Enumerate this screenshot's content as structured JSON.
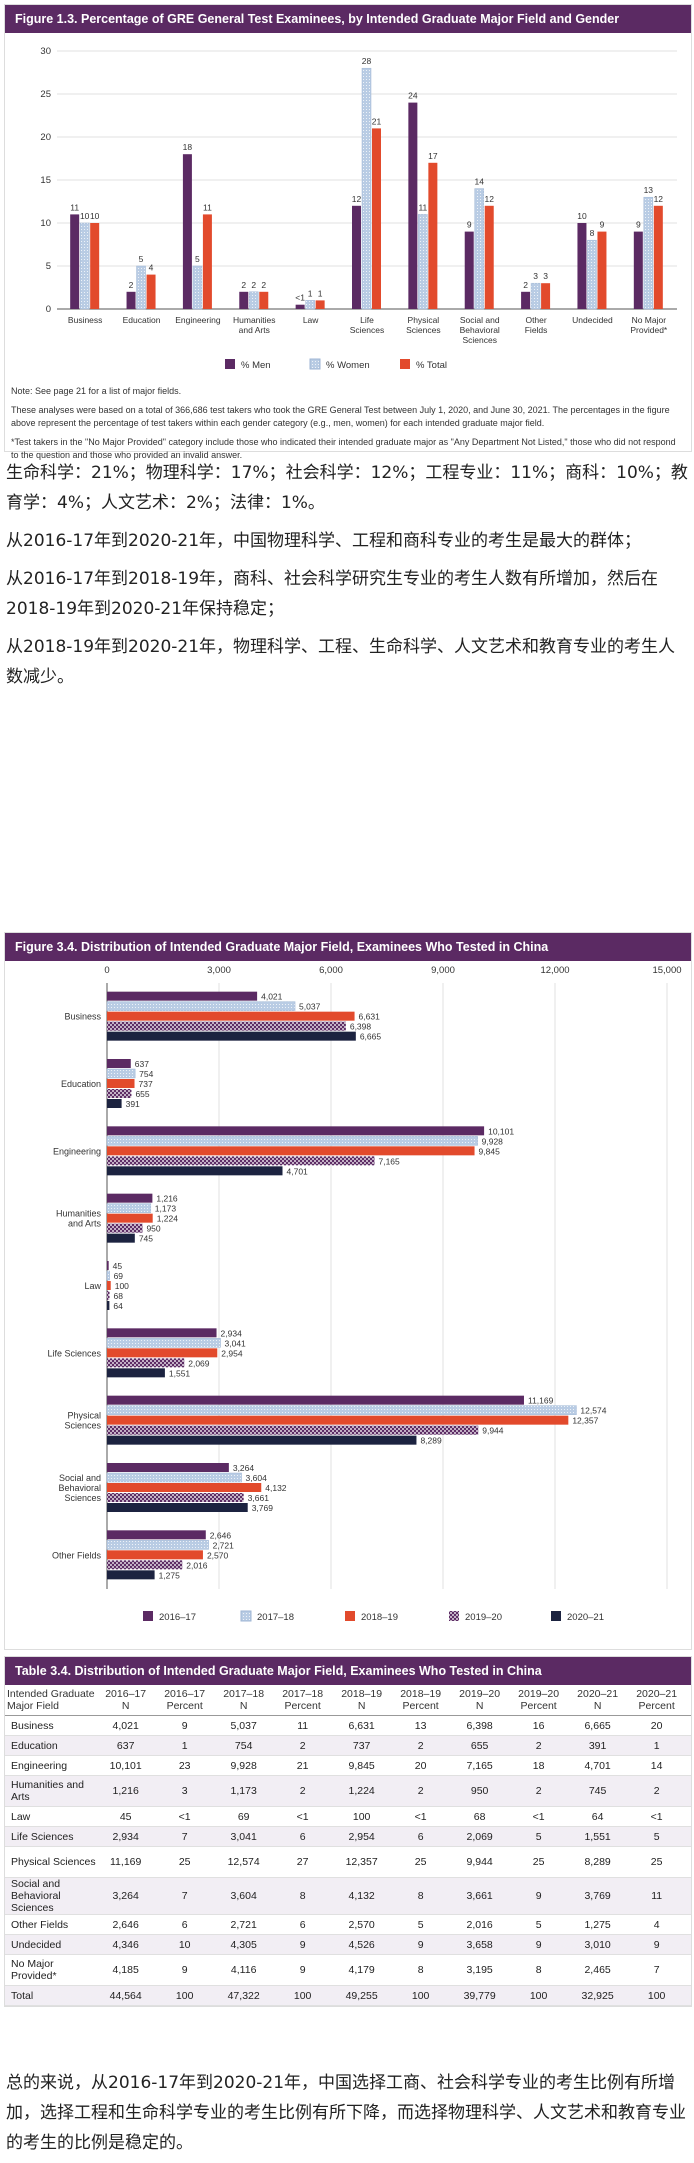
{
  "figure13": {
    "title": "Figure 1.3. Percentage of GRE General Test Examinees, by Intended Graduate Major Field and Gender",
    "note1": "Note: See page 21 for a list of major fields.",
    "note2": "These analyses were based on a total of 366,686 test takers who took the GRE General Test between July 1, 2020, and June 30, 2021. The percentages in the figure above represent the percentage of test takers within each gender category (e.g., men, women) for each intended graduate major field.",
    "note3": "*Test takers in the \"No Major Provided\" category include those who indicated their intended graduate major as \"Any Department Not Listed,\" those who did not respond to the question and those who provided an invalid answer."
  },
  "text1": {
    "p1": "生命科学：21%；物理科学：17%；社会科学：12%；工程专业：11%；商科：10%；教育学：4%；人文艺术：2%；法律：1%。",
    "p2": "从2016-17年到2020-21年，中国物理科学、工程和商科专业的考生是最大的群体；",
    "p3": "从2016-17年到2018-19年，商科、社会科学研究生专业的考生人数有所增加，然后在2018-19年到2020-21年保持稳定；",
    "p4": "从2018-19年到2020-21年，物理科学、工程、生命科学、人文艺术和教育专业的考生人数减少。"
  },
  "figure34": {
    "title": "Figure 3.4. Distribution of Intended Graduate Major Field, Examinees Who Tested in China"
  },
  "table34": {
    "title": "Table 3.4. Distribution of Intended Graduate Major Field, Examinees Who Tested in China",
    "headers": [
      "Intended Graduate Major Field",
      "2016–17 N",
      "2016–17 Percent",
      "2017–18 N",
      "2017–18 Percent",
      "2018–19 N",
      "2018–19 Percent",
      "2019–20 N",
      "2019–20 Percent",
      "2020–21 N",
      "2020–21 Percent"
    ],
    "rows": [
      [
        "Business",
        "4,021",
        "9",
        "5,037",
        "11",
        "6,631",
        "13",
        "6,398",
        "16",
        "6,665",
        "20"
      ],
      [
        "Education",
        "637",
        "1",
        "754",
        "2",
        "737",
        "2",
        "655",
        "2",
        "391",
        "1"
      ],
      [
        "Engineering",
        "10,101",
        "23",
        "9,928",
        "21",
        "9,845",
        "20",
        "7,165",
        "18",
        "4,701",
        "14"
      ],
      [
        "Humanities and Arts",
        "1,216",
        "3",
        "1,173",
        "2",
        "1,224",
        "2",
        "950",
        "2",
        "745",
        "2"
      ],
      [
        "Law",
        "45",
        "<1",
        "69",
        "<1",
        "100",
        "<1",
        "68",
        "<1",
        "64",
        "<1"
      ],
      [
        "Life Sciences",
        "2,934",
        "7",
        "3,041",
        "6",
        "2,954",
        "6",
        "2,069",
        "5",
        "1,551",
        "5"
      ],
      [
        "Physical Sciences",
        "11,169",
        "25",
        "12,574",
        "27",
        "12,357",
        "25",
        "9,944",
        "25",
        "8,289",
        "25"
      ],
      [
        "Social and Behavioral Sciences",
        "3,264",
        "7",
        "3,604",
        "8",
        "4,132",
        "8",
        "3,661",
        "9",
        "3,769",
        "11"
      ],
      [
        "Other Fields",
        "2,646",
        "6",
        "2,721",
        "6",
        "2,570",
        "5",
        "2,016",
        "5",
        "1,275",
        "4"
      ],
      [
        "Undecided",
        "4,346",
        "10",
        "4,305",
        "9",
        "4,526",
        "9",
        "3,658",
        "9",
        "3,010",
        "9"
      ],
      [
        "No Major Provided*",
        "4,185",
        "9",
        "4,116",
        "9",
        "4,179",
        "8",
        "3,195",
        "8",
        "2,465",
        "7"
      ],
      [
        "Total",
        "44,564",
        "100",
        "47,322",
        "100",
        "49,255",
        "100",
        "39,779",
        "100",
        "32,925",
        "100"
      ]
    ]
  },
  "text2": "总的来说，从2016-17年到2020-21年，中国选择工商、社会科学专业的考生比例有所增加，选择工程和生命科学专业的考生比例有所下降，而选择物理科学、人文艺术和教育专业的考生的比例是稳定的。",
  "colors": {
    "men": "#5b2a63",
    "women": "#b9cce4",
    "total": "#e24a2c",
    "y2019": "#5b2a63",
    "y2020": "#1c2340"
  },
  "chart_data": [
    {
      "type": "bar",
      "categories": [
        "Business",
        "Education",
        "Engineering",
        "Humanities and Arts",
        "Law",
        "Life Sciences",
        "Physical Sciences",
        "Social and Behavioral Sciences",
        "Other Fields",
        "Undecided",
        "No Major Provided*"
      ],
      "series": [
        {
          "name": "% Men",
          "values": [
            11,
            2,
            18,
            2,
            0.5,
            12,
            24,
            9,
            2,
            10,
            9
          ],
          "labels": [
            "11",
            "2",
            "18",
            "2",
            "<1",
            "12",
            "24",
            "9",
            "2",
            "10",
            "9"
          ]
        },
        {
          "name": "% Women",
          "values": [
            10,
            5,
            5,
            2,
            1,
            28,
            11,
            14,
            3,
            8,
            13
          ],
          "labels": [
            "10",
            "5",
            "5",
            "2",
            "1",
            "28",
            "11",
            "14",
            "3",
            "8",
            "13"
          ]
        },
        {
          "name": "% Total",
          "values": [
            10,
            4,
            11,
            2,
            1,
            21,
            17,
            12,
            3,
            9,
            12
          ],
          "labels": [
            "10",
            "4",
            "11",
            "2",
            "1",
            "21",
            "17",
            "12",
            "3",
            "9",
            "12"
          ]
        }
      ],
      "ylim": [
        0,
        30
      ],
      "yticks": [
        "0",
        "5",
        "10",
        "15",
        "20",
        "25",
        "30"
      ],
      "legend": "bottom"
    },
    {
      "type": "bar",
      "orientation": "horizontal",
      "categories": [
        "Business",
        "Education",
        "Engineering",
        "Humanities and Arts",
        "Law",
        "Life Sciences",
        "Physical Sciences",
        "Social and Behavioral Sciences",
        "Other Fields"
      ],
      "series": [
        {
          "name": "2016–17",
          "values": [
            4021,
            637,
            10101,
            1216,
            45,
            2934,
            11169,
            3264,
            2646
          ]
        },
        {
          "name": "2017–18",
          "values": [
            5037,
            754,
            9928,
            1173,
            69,
            3041,
            12574,
            3604,
            2721
          ]
        },
        {
          "name": "2018–19",
          "values": [
            6631,
            737,
            9845,
            1224,
            100,
            2954,
            12357,
            4132,
            2570
          ]
        },
        {
          "name": "2019–20",
          "values": [
            6398,
            655,
            7165,
            950,
            68,
            2069,
            9944,
            3661,
            2016
          ]
        },
        {
          "name": "2020–21",
          "values": [
            6665,
            391,
            4701,
            745,
            64,
            1551,
            8289,
            3769,
            1275
          ]
        }
      ],
      "xlim": [
        0,
        15000
      ],
      "xticks": [
        "0",
        "3,000",
        "6,000",
        "9,000",
        "12,000",
        "15,000"
      ],
      "legend": "bottom"
    }
  ]
}
